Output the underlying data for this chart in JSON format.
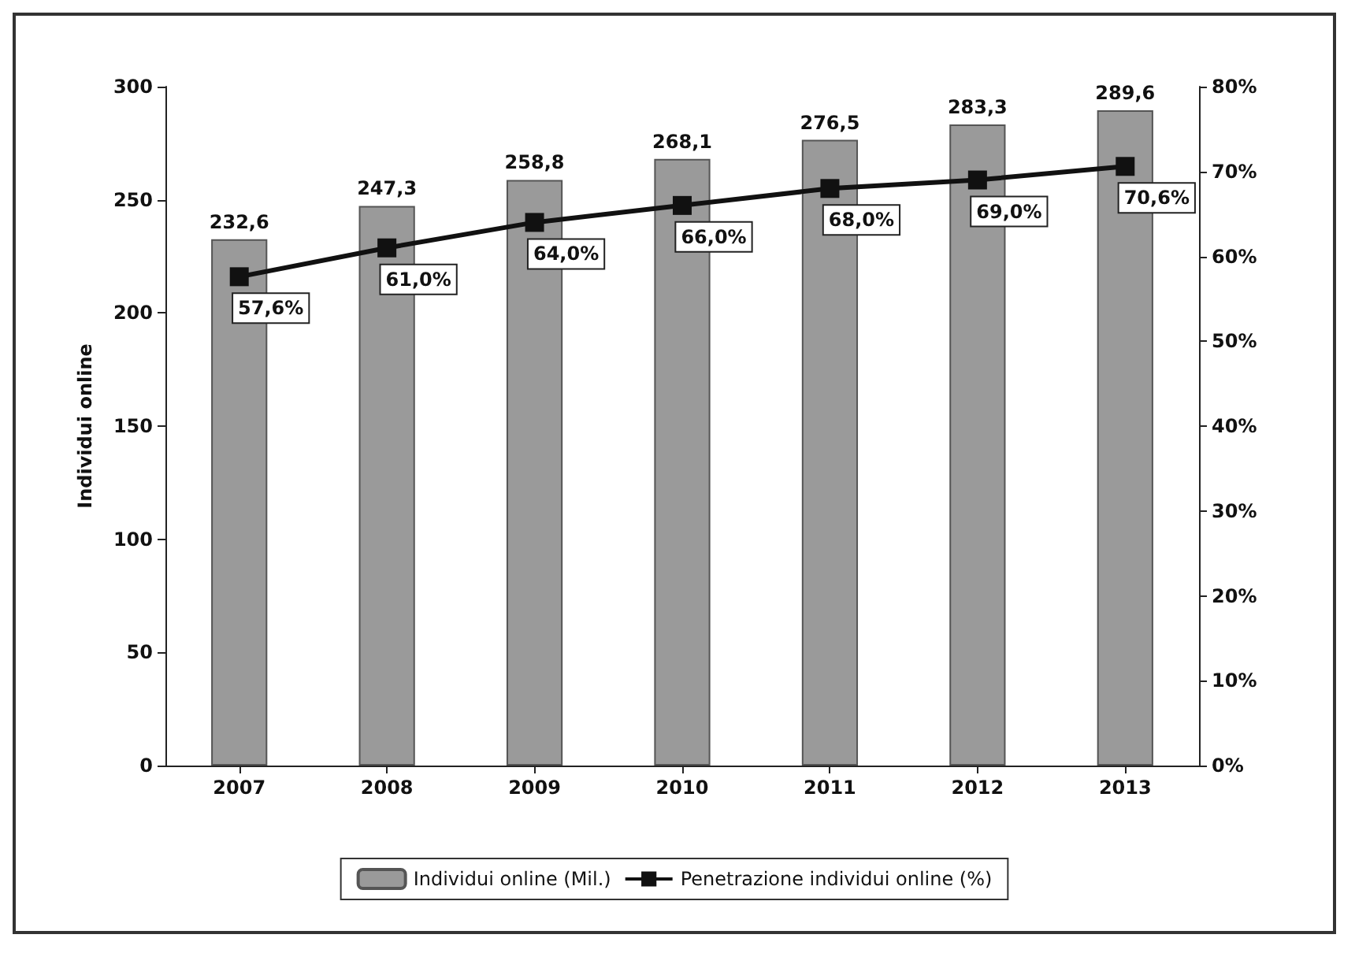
{
  "chart_data": {
    "type": "bar",
    "categories": [
      "2007",
      "2008",
      "2009",
      "2010",
      "2011",
      "2012",
      "2013"
    ],
    "ylabel": "Individui online",
    "ylim": [
      0,
      300
    ],
    "yticks": [
      0,
      50,
      100,
      150,
      200,
      250,
      300
    ],
    "y2lim": [
      0,
      80
    ],
    "y2ticks": [
      {
        "value": 0,
        "label": "0%"
      },
      {
        "value": 10,
        "label": "10%"
      },
      {
        "value": 20,
        "label": "20%"
      },
      {
        "value": 30,
        "label": "30%"
      },
      {
        "value": 40,
        "label": "40%"
      },
      {
        "value": 50,
        "label": "50%"
      },
      {
        "value": 60,
        "label": "60%"
      },
      {
        "value": 70,
        "label": "70%"
      },
      {
        "value": 80,
        "label": "80%"
      }
    ],
    "series": [
      {
        "name": "Individui online (Mil.)",
        "color": "#9a9a9a",
        "values": [
          232.6,
          247.3,
          258.8,
          268.1,
          276.5,
          283.3,
          289.6
        ],
        "value_labels": [
          "232,6",
          "247,3",
          "258,8",
          "268,1",
          "276,5",
          "283,3",
          "289,6"
        ]
      },
      {
        "name": "Penetrazione individui online (%)",
        "type": "line",
        "axis": "y2",
        "color": "#111111",
        "marker": "square",
        "values": [
          57.6,
          61.0,
          64.0,
          66.0,
          68.0,
          69.0,
          70.6
        ],
        "value_labels": [
          "57,6%",
          "61,0%",
          "64,0%",
          "66,0%",
          "68,0%",
          "69,0%",
          "70,6%"
        ]
      }
    ],
    "legend": "bottom",
    "grid": false
  }
}
